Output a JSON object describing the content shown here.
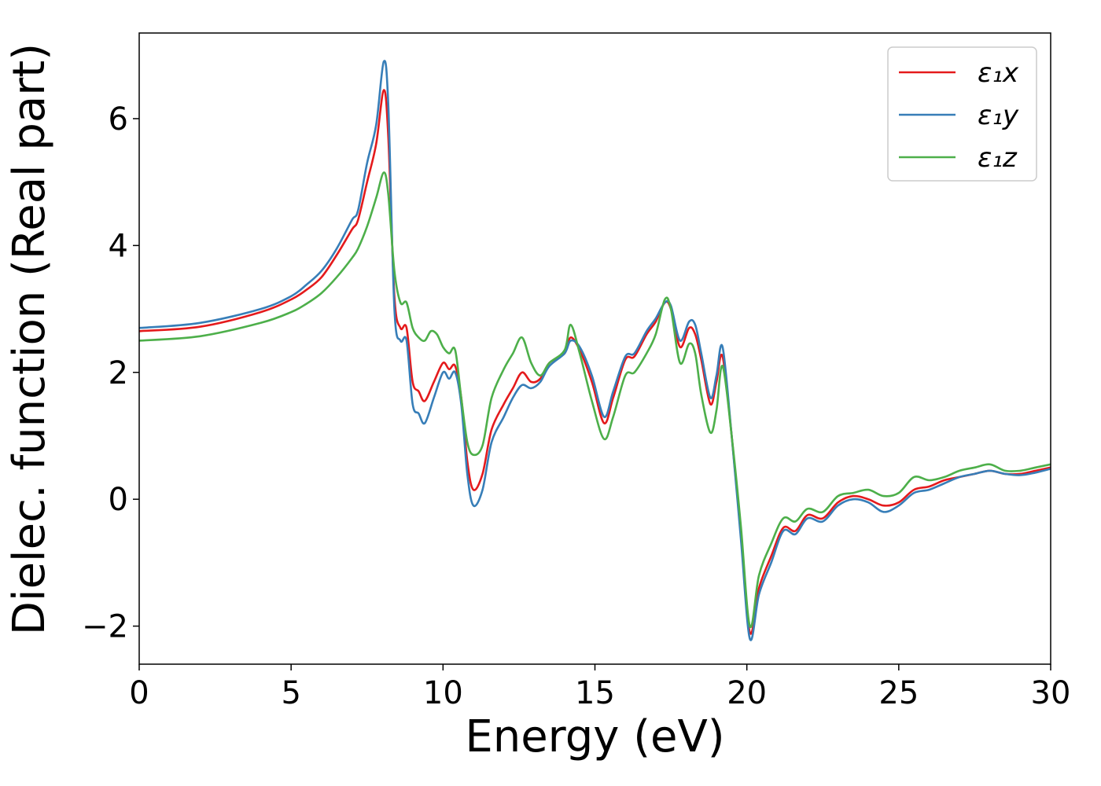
{
  "chart_data": {
    "type": "line",
    "xlabel": "Energy (eV)",
    "ylabel": "Dielec. function (Real part)",
    "xlim": [
      0,
      30
    ],
    "ylim": [
      -2.6,
      7.35
    ],
    "xticks": [
      0,
      5,
      10,
      15,
      20,
      25,
      30
    ],
    "xtick_labels": [
      "0",
      "5",
      "10",
      "15",
      "20",
      "25",
      "30"
    ],
    "yticks": [
      -2,
      0,
      2,
      4,
      6
    ],
    "ytick_labels": [
      "−2",
      "0",
      "2",
      "4",
      "6"
    ],
    "grid": false,
    "legend_position": "top-right",
    "series": [
      {
        "name": "ε₁x",
        "color": "#e41a1c",
        "points": [
          [
            0,
            2.65
          ],
          [
            2,
            2.72
          ],
          [
            4,
            2.95
          ],
          [
            5,
            3.15
          ],
          [
            5.5,
            3.3
          ],
          [
            6,
            3.5
          ],
          [
            6.5,
            3.85
          ],
          [
            7,
            4.25
          ],
          [
            7.2,
            4.4
          ],
          [
            7.5,
            5.0
          ],
          [
            7.8,
            5.6
          ],
          [
            8.05,
            6.45
          ],
          [
            8.2,
            5.7
          ],
          [
            8.4,
            3.2
          ],
          [
            8.6,
            2.7
          ],
          [
            8.8,
            2.7
          ],
          [
            9.0,
            1.85
          ],
          [
            9.2,
            1.7
          ],
          [
            9.4,
            1.55
          ],
          [
            9.7,
            1.85
          ],
          [
            10.0,
            2.15
          ],
          [
            10.2,
            2.05
          ],
          [
            10.4,
            2.1
          ],
          [
            10.6,
            1.6
          ],
          [
            10.8,
            0.6
          ],
          [
            11.0,
            0.15
          ],
          [
            11.3,
            0.4
          ],
          [
            11.6,
            1.1
          ],
          [
            12.0,
            1.5
          ],
          [
            12.3,
            1.75
          ],
          [
            12.6,
            2.0
          ],
          [
            12.9,
            1.85
          ],
          [
            13.2,
            1.9
          ],
          [
            13.5,
            2.15
          ],
          [
            14.0,
            2.3
          ],
          [
            14.2,
            2.55
          ],
          [
            14.5,
            2.35
          ],
          [
            14.9,
            1.85
          ],
          [
            15.3,
            1.2
          ],
          [
            15.6,
            1.6
          ],
          [
            16.0,
            2.2
          ],
          [
            16.3,
            2.25
          ],
          [
            16.7,
            2.6
          ],
          [
            17.0,
            2.8
          ],
          [
            17.3,
            3.1
          ],
          [
            17.5,
            3.0
          ],
          [
            17.8,
            2.4
          ],
          [
            18.1,
            2.7
          ],
          [
            18.3,
            2.6
          ],
          [
            18.5,
            2.2
          ],
          [
            18.8,
            1.5
          ],
          [
            19.0,
            1.85
          ],
          [
            19.2,
            2.25
          ],
          [
            19.5,
            1.0
          ],
          [
            19.8,
            -0.5
          ],
          [
            20.1,
            -2.1
          ],
          [
            20.4,
            -1.4
          ],
          [
            20.8,
            -0.9
          ],
          [
            21.2,
            -0.45
          ],
          [
            21.6,
            -0.5
          ],
          [
            22.0,
            -0.25
          ],
          [
            22.5,
            -0.3
          ],
          [
            23.0,
            -0.05
          ],
          [
            23.5,
            0.05
          ],
          [
            24.0,
            0.0
          ],
          [
            24.5,
            -0.1
          ],
          [
            25.0,
            -0.05
          ],
          [
            25.5,
            0.15
          ],
          [
            26.0,
            0.2
          ],
          [
            26.5,
            0.3
          ],
          [
            27.0,
            0.35
          ],
          [
            27.5,
            0.4
          ],
          [
            28.0,
            0.45
          ],
          [
            28.5,
            0.4
          ],
          [
            29.0,
            0.4
          ],
          [
            29.5,
            0.45
          ],
          [
            30.0,
            0.5
          ]
        ]
      },
      {
        "name": "ε₁y",
        "color": "#377eb8",
        "points": [
          [
            0,
            2.7
          ],
          [
            2,
            2.78
          ],
          [
            4,
            3.0
          ],
          [
            5,
            3.2
          ],
          [
            5.5,
            3.38
          ],
          [
            6,
            3.6
          ],
          [
            6.5,
            3.95
          ],
          [
            7,
            4.4
          ],
          [
            7.2,
            4.55
          ],
          [
            7.5,
            5.3
          ],
          [
            7.8,
            5.9
          ],
          [
            8.05,
            6.9
          ],
          [
            8.2,
            6.2
          ],
          [
            8.4,
            3.0
          ],
          [
            8.6,
            2.5
          ],
          [
            8.8,
            2.5
          ],
          [
            9.0,
            1.5
          ],
          [
            9.2,
            1.35
          ],
          [
            9.4,
            1.2
          ],
          [
            9.7,
            1.6
          ],
          [
            10.0,
            2.0
          ],
          [
            10.2,
            1.9
          ],
          [
            10.4,
            2.0
          ],
          [
            10.6,
            1.5
          ],
          [
            10.8,
            0.4
          ],
          [
            11.0,
            -0.1
          ],
          [
            11.3,
            0.15
          ],
          [
            11.6,
            0.9
          ],
          [
            12.0,
            1.3
          ],
          [
            12.3,
            1.6
          ],
          [
            12.6,
            1.8
          ],
          [
            12.9,
            1.75
          ],
          [
            13.2,
            1.85
          ],
          [
            13.5,
            2.1
          ],
          [
            14.0,
            2.3
          ],
          [
            14.2,
            2.5
          ],
          [
            14.5,
            2.4
          ],
          [
            14.9,
            1.95
          ],
          [
            15.3,
            1.3
          ],
          [
            15.6,
            1.7
          ],
          [
            16.0,
            2.25
          ],
          [
            16.3,
            2.3
          ],
          [
            16.7,
            2.65
          ],
          [
            17.0,
            2.85
          ],
          [
            17.3,
            3.1
          ],
          [
            17.5,
            3.05
          ],
          [
            17.8,
            2.5
          ],
          [
            18.1,
            2.8
          ],
          [
            18.3,
            2.75
          ],
          [
            18.5,
            2.3
          ],
          [
            18.8,
            1.6
          ],
          [
            19.0,
            1.95
          ],
          [
            19.2,
            2.4
          ],
          [
            19.5,
            1.0
          ],
          [
            19.8,
            -0.6
          ],
          [
            20.1,
            -2.2
          ],
          [
            20.4,
            -1.5
          ],
          [
            20.8,
            -1.0
          ],
          [
            21.2,
            -0.5
          ],
          [
            21.6,
            -0.55
          ],
          [
            22.0,
            -0.3
          ],
          [
            22.5,
            -0.35
          ],
          [
            23.0,
            -0.1
          ],
          [
            23.5,
            0.0
          ],
          [
            24.0,
            -0.05
          ],
          [
            24.5,
            -0.2
          ],
          [
            25.0,
            -0.1
          ],
          [
            25.5,
            0.1
          ],
          [
            26.0,
            0.15
          ],
          [
            26.5,
            0.25
          ],
          [
            27.0,
            0.35
          ],
          [
            27.5,
            0.4
          ],
          [
            28.0,
            0.45
          ],
          [
            28.5,
            0.4
          ],
          [
            29.0,
            0.38
          ],
          [
            29.5,
            0.42
          ],
          [
            30.0,
            0.48
          ]
        ]
      },
      {
        "name": "ε₁z",
        "color": "#4daf4a",
        "points": [
          [
            0,
            2.5
          ],
          [
            2,
            2.57
          ],
          [
            4,
            2.78
          ],
          [
            5,
            2.95
          ],
          [
            5.5,
            3.08
          ],
          [
            6,
            3.25
          ],
          [
            6.5,
            3.5
          ],
          [
            7,
            3.8
          ],
          [
            7.2,
            3.95
          ],
          [
            7.5,
            4.3
          ],
          [
            7.8,
            4.75
          ],
          [
            8.05,
            5.15
          ],
          [
            8.2,
            4.8
          ],
          [
            8.4,
            3.6
          ],
          [
            8.6,
            3.1
          ],
          [
            8.8,
            3.1
          ],
          [
            9.0,
            2.7
          ],
          [
            9.2,
            2.55
          ],
          [
            9.4,
            2.5
          ],
          [
            9.6,
            2.65
          ],
          [
            9.8,
            2.6
          ],
          [
            10.0,
            2.4
          ],
          [
            10.2,
            2.3
          ],
          [
            10.4,
            2.35
          ],
          [
            10.6,
            1.6
          ],
          [
            10.8,
            0.9
          ],
          [
            11.0,
            0.7
          ],
          [
            11.3,
            0.85
          ],
          [
            11.6,
            1.6
          ],
          [
            12.0,
            2.05
          ],
          [
            12.3,
            2.3
          ],
          [
            12.6,
            2.55
          ],
          [
            12.9,
            2.15
          ],
          [
            13.2,
            1.95
          ],
          [
            13.5,
            2.15
          ],
          [
            14.0,
            2.35
          ],
          [
            14.2,
            2.75
          ],
          [
            14.5,
            2.3
          ],
          [
            14.9,
            1.55
          ],
          [
            15.3,
            0.95
          ],
          [
            15.6,
            1.3
          ],
          [
            16.0,
            1.95
          ],
          [
            16.3,
            2.0
          ],
          [
            16.7,
            2.3
          ],
          [
            17.0,
            2.6
          ],
          [
            17.3,
            3.15
          ],
          [
            17.5,
            3.0
          ],
          [
            17.8,
            2.15
          ],
          [
            18.1,
            2.45
          ],
          [
            18.3,
            2.3
          ],
          [
            18.5,
            1.65
          ],
          [
            18.8,
            1.05
          ],
          [
            19.0,
            1.4
          ],
          [
            19.2,
            2.1
          ],
          [
            19.5,
            1.0
          ],
          [
            19.8,
            -0.4
          ],
          [
            20.1,
            -2.0
          ],
          [
            20.4,
            -1.2
          ],
          [
            20.8,
            -0.7
          ],
          [
            21.2,
            -0.3
          ],
          [
            21.6,
            -0.35
          ],
          [
            22.0,
            -0.15
          ],
          [
            22.5,
            -0.2
          ],
          [
            23.0,
            0.05
          ],
          [
            23.5,
            0.1
          ],
          [
            24.0,
            0.15
          ],
          [
            24.5,
            0.05
          ],
          [
            25.0,
            0.1
          ],
          [
            25.5,
            0.35
          ],
          [
            26.0,
            0.3
          ],
          [
            26.5,
            0.35
          ],
          [
            27.0,
            0.45
          ],
          [
            27.5,
            0.5
          ],
          [
            28.0,
            0.55
          ],
          [
            28.5,
            0.45
          ],
          [
            29.0,
            0.45
          ],
          [
            29.5,
            0.5
          ],
          [
            30.0,
            0.55
          ]
        ]
      }
    ]
  }
}
